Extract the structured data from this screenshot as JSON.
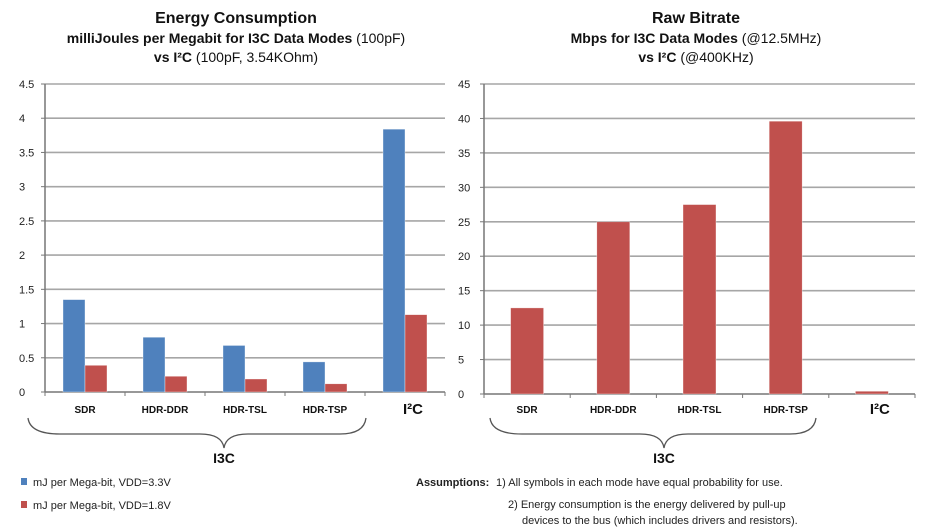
{
  "colors": {
    "blue": "#4f81bd",
    "red": "#c0504d",
    "grid": "#a6a6a6"
  },
  "chart_data": [
    {
      "type": "bar",
      "title": {
        "line1": "Energy Consumption",
        "line2_bold": "milliJoules per Megabit for I3C Data Modes",
        "line2_normal": " (100pF)",
        "line3_bold": "vs I²C",
        "line3_normal": " (100pF, 3.54KOhm)"
      },
      "categories": [
        "SDR",
        "HDR-DDR",
        "HDR-TSL",
        "HDR-TSP",
        "I²C"
      ],
      "group_label": "I3C",
      "ylim": [
        0,
        4.5
      ],
      "yticks": [
        "0",
        "0.5",
        "1",
        "1.5",
        "2",
        "2.5",
        "3",
        "3.5",
        "4",
        "4.5"
      ],
      "grid": true,
      "legend_position": "bottom-left",
      "series": [
        {
          "name": "mJ per Mega-bit, VDD=3.3V",
          "color": "#4f81bd",
          "values": [
            1.35,
            0.8,
            0.68,
            0.44,
            3.84
          ]
        },
        {
          "name": "mJ per Mega-bit, VDD=1.8V",
          "color": "#c0504d",
          "values": [
            0.39,
            0.23,
            0.19,
            0.12,
            1.13
          ]
        }
      ]
    },
    {
      "type": "bar",
      "title": {
        "line1": "Raw Bitrate",
        "line2_bold": "Mbps for I3C Data Modes",
        "line2_normal": " (@12.5MHz)",
        "line3_bold": "vs I²C",
        "line3_normal": " (@400KHz)"
      },
      "categories": [
        "SDR",
        "HDR-DDR",
        "HDR-TSL",
        "HDR-TSP",
        "I²C"
      ],
      "group_label": "I3C",
      "ylim": [
        0,
        45
      ],
      "yticks": [
        "0",
        "5",
        "10",
        "15",
        "20",
        "25",
        "30",
        "35",
        "40",
        "45"
      ],
      "grid": true,
      "series": [
        {
          "color": "#c0504d",
          "values": [
            12.5,
            25,
            27.5,
            39.6,
            0.4
          ]
        }
      ]
    }
  ],
  "assumptions": {
    "label": "Assumptions:",
    "items": [
      "1) All symbols in each mode have equal probability for use.",
      "2) Energy consumption is the energy delivered by pull-up",
      "devices to the bus (which includes drivers and resistors)."
    ]
  }
}
